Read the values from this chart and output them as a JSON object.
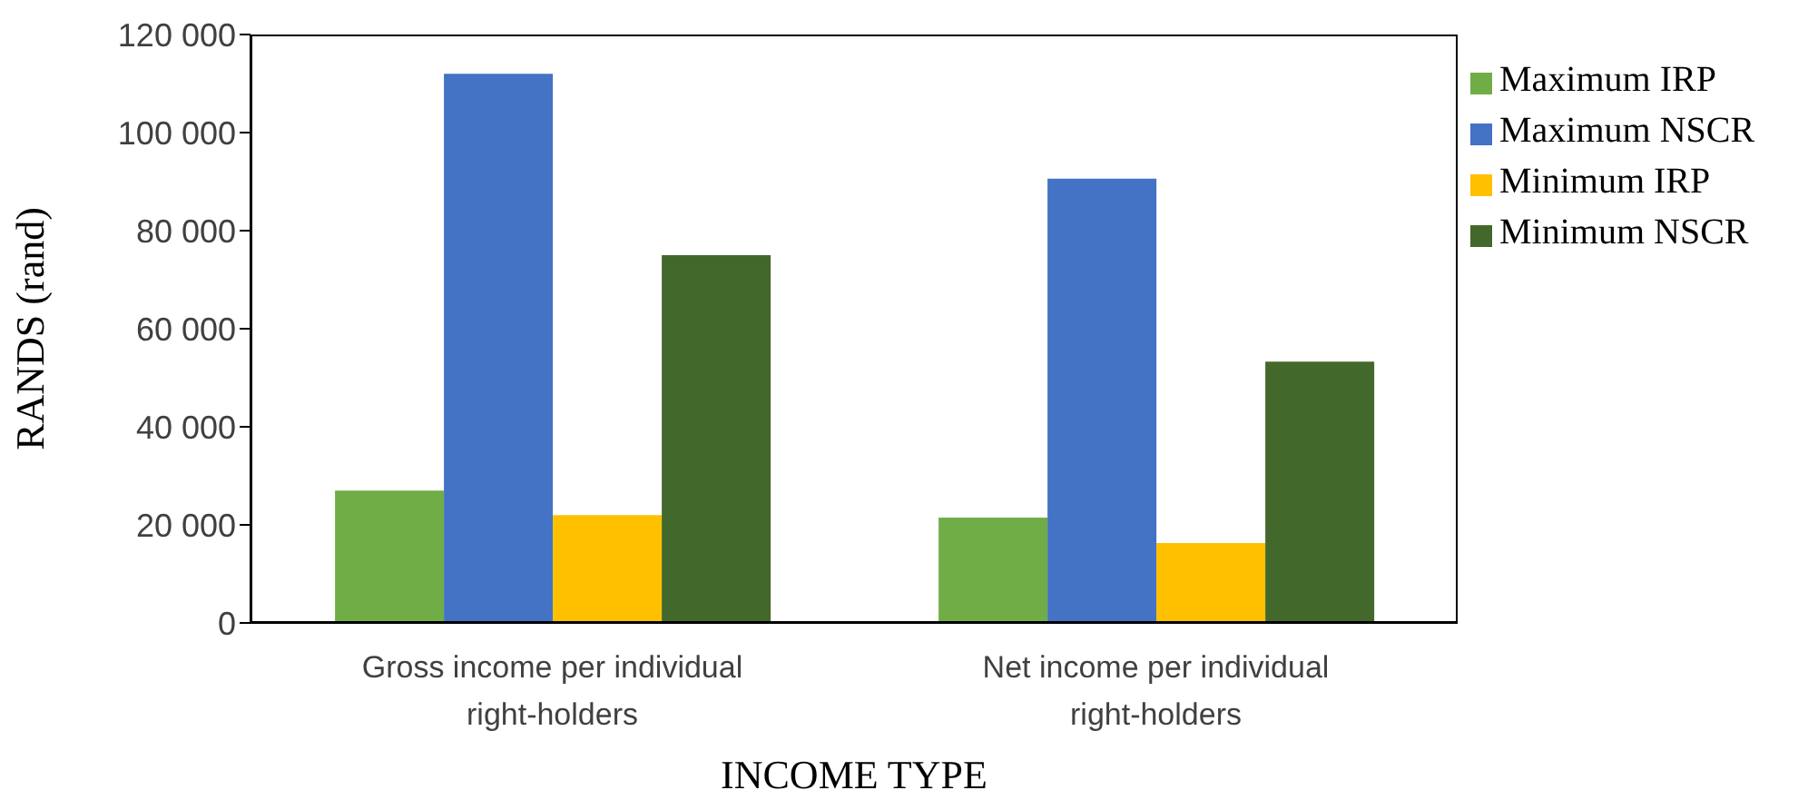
{
  "chart_data": {
    "type": "bar",
    "xlabel": "INCOME TYPE",
    "ylabel": "RANDS (rand)",
    "categories": [
      "Gross income per individual right-holders",
      "Net income per individual right-holders"
    ],
    "series": [
      {
        "name": "Maximum IRP",
        "color": "#70ad47",
        "values": [
          27000,
          21500
        ]
      },
      {
        "name": "Maximum NSCR",
        "color": "#4472c4",
        "values": [
          112000,
          90600
        ]
      },
      {
        "name": "Minimum IRP",
        "color": "#ffc000",
        "values": [
          22000,
          16300
        ]
      },
      {
        "name": "Minimum NSCR",
        "color": "#43682b",
        "values": [
          75000,
          53300
        ]
      }
    ],
    "ylim": [
      0,
      120000
    ],
    "yticks": [
      {
        "value": 0,
        "label": "0"
      },
      {
        "value": 20000,
        "label": "20 000"
      },
      {
        "value": 40000,
        "label": "40 000"
      },
      {
        "value": 60000,
        "label": "60 000"
      },
      {
        "value": 80000,
        "label": "80 000"
      },
      {
        "value": 100000,
        "label": "100 000"
      },
      {
        "value": 120000,
        "label": "120 000"
      }
    ],
    "grid": false,
    "legend": "right"
  }
}
